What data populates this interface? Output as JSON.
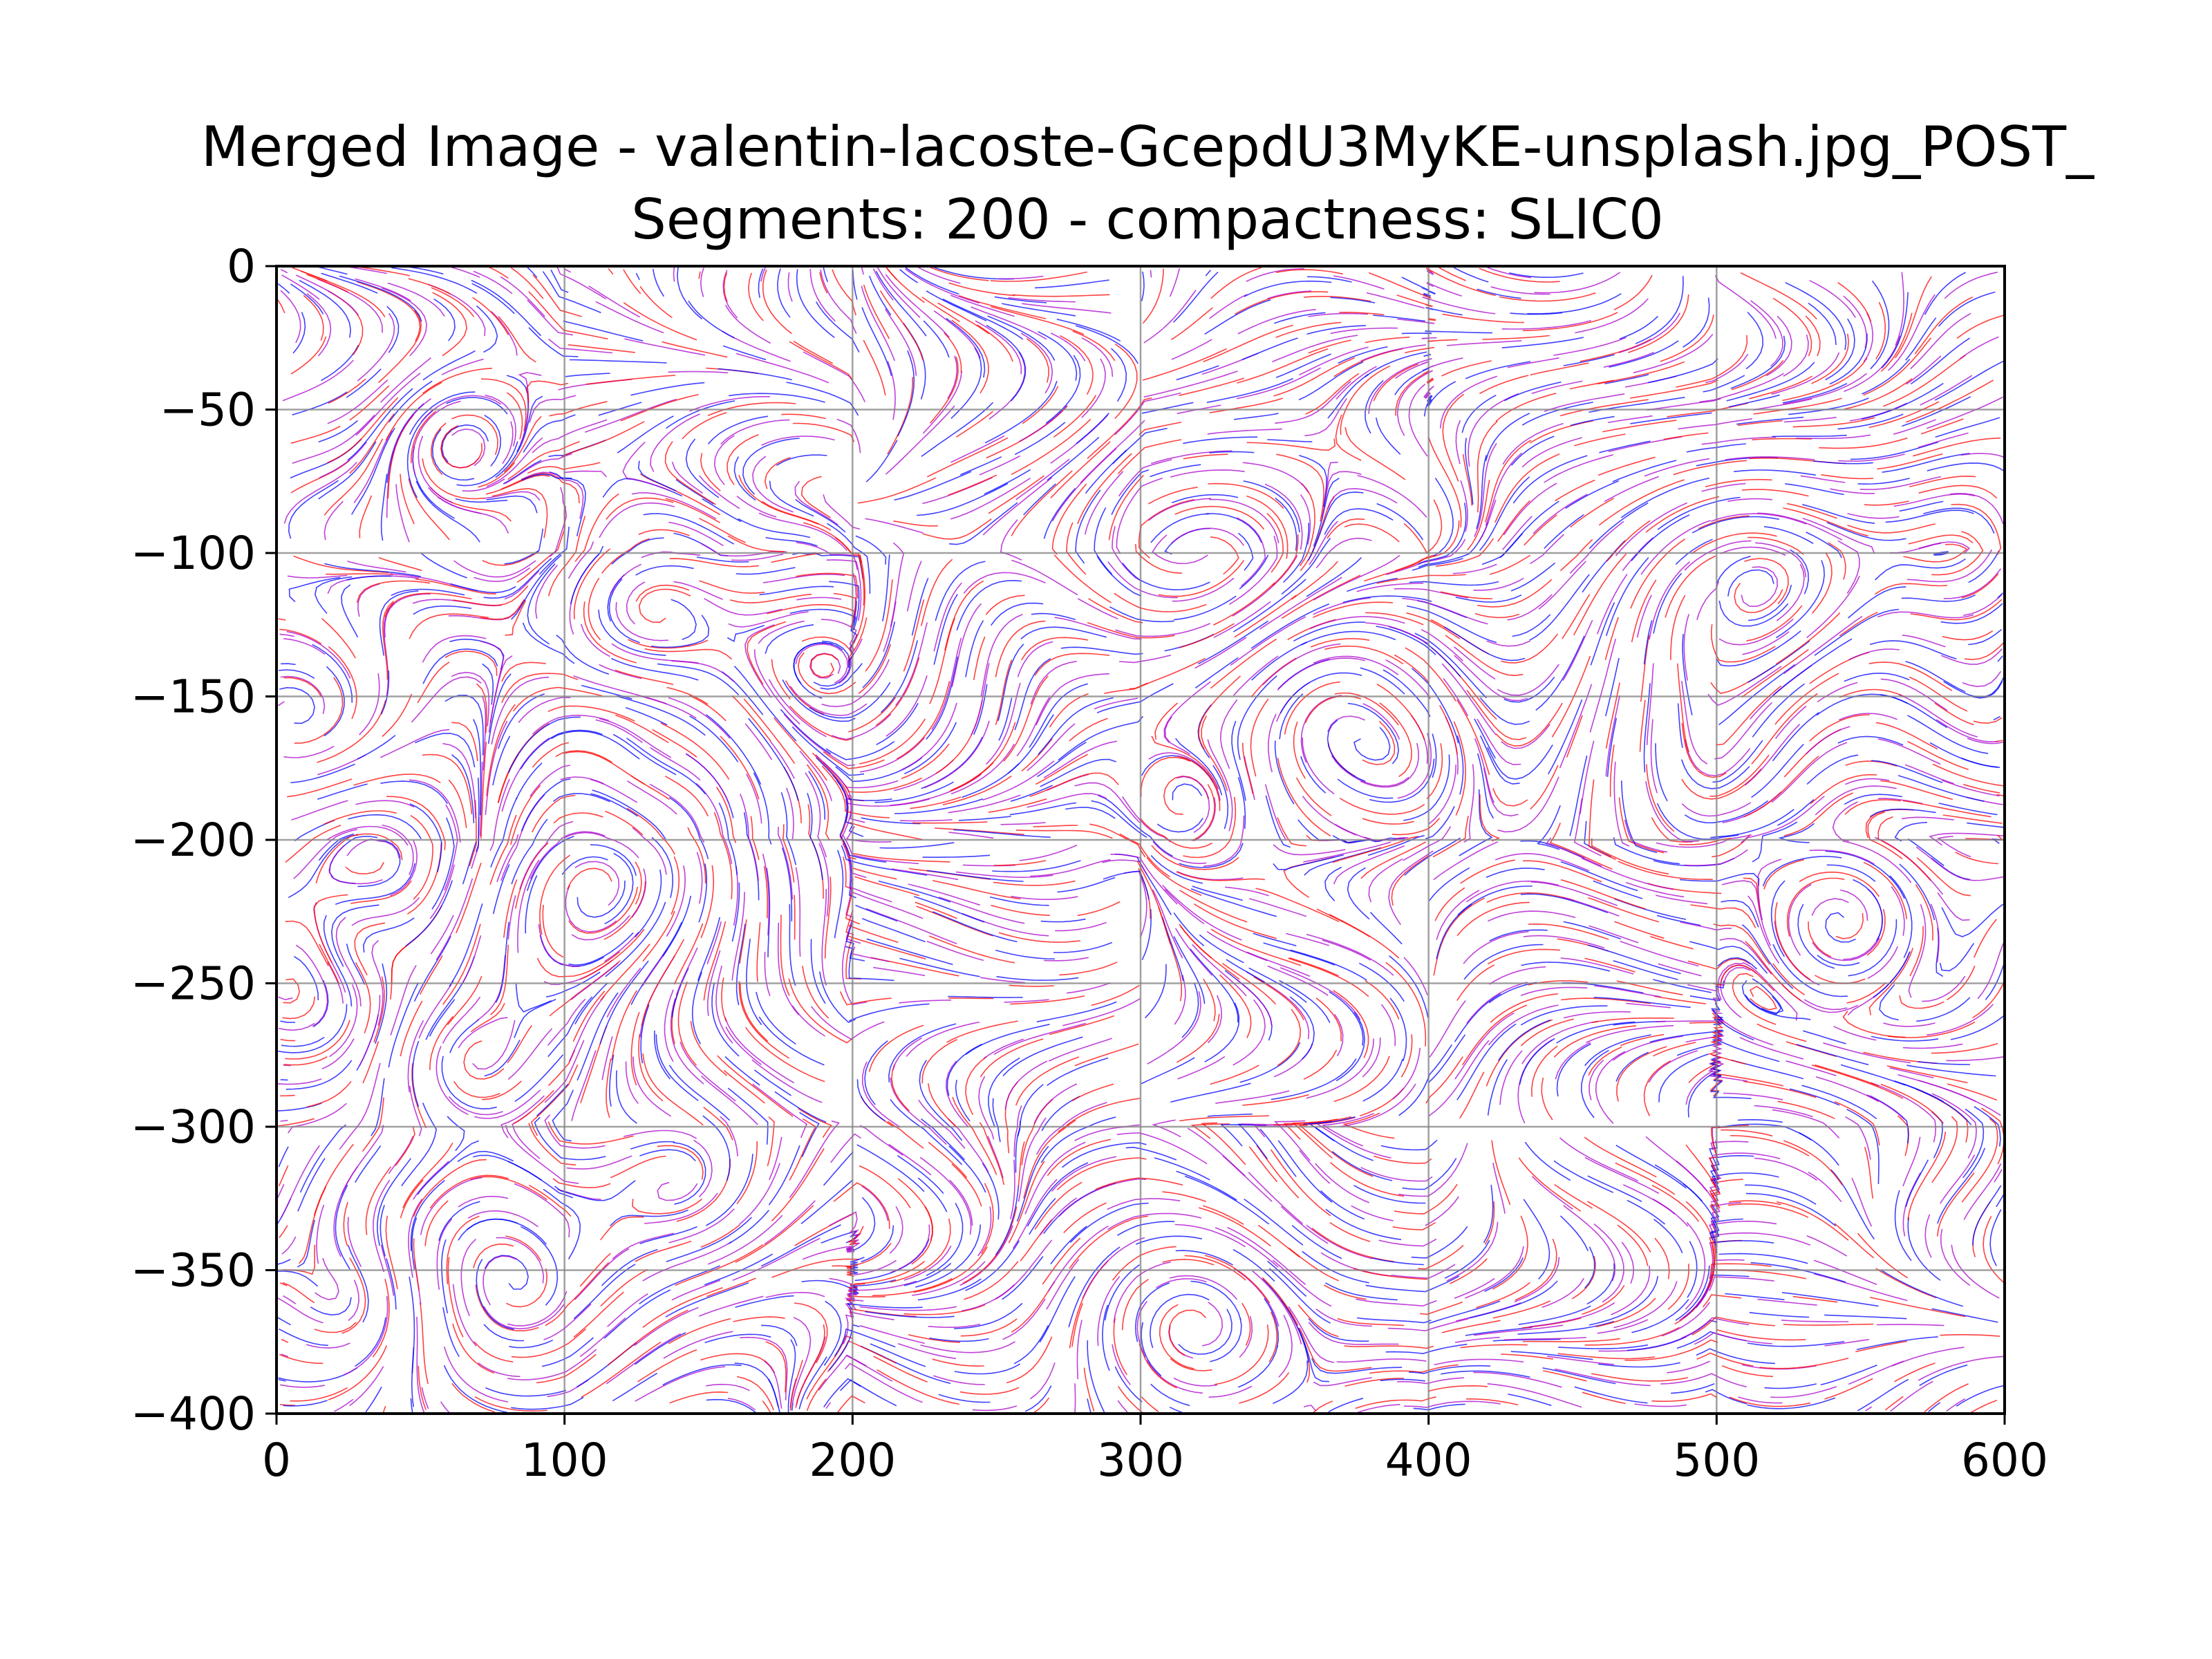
{
  "chart_data": {
    "type": "streamplot",
    "title_line1": "Merged Image - valentin-lacoste-GcepdU3MyKE-unsplash.jpg_POST_",
    "title_line2": "Segments: 200 - compactness: SLIC0",
    "xlabel": "",
    "ylabel": "",
    "xlim": [
      0,
      600
    ],
    "ylim": [
      -400,
      0
    ],
    "x_ticks": [
      0,
      100,
      200,
      300,
      400,
      500,
      600
    ],
    "y_ticks": [
      0,
      -50,
      -100,
      -150,
      -200,
      -250,
      -300,
      -350,
      -400
    ],
    "x_tick_labels": [
      "0",
      "100",
      "200",
      "300",
      "400",
      "500",
      "600"
    ],
    "y_tick_labels": [
      "0",
      "−50",
      "−100",
      "−150",
      "−200",
      "−250",
      "−300",
      "−350",
      "−400"
    ],
    "grid": true,
    "series": [
      {
        "color": "#ff0000"
      },
      {
        "color": "#0000ff"
      },
      {
        "color": "#aa00cc"
      }
    ],
    "segment_grid": {
      "cols": 6,
      "rows": 4
    }
  }
}
